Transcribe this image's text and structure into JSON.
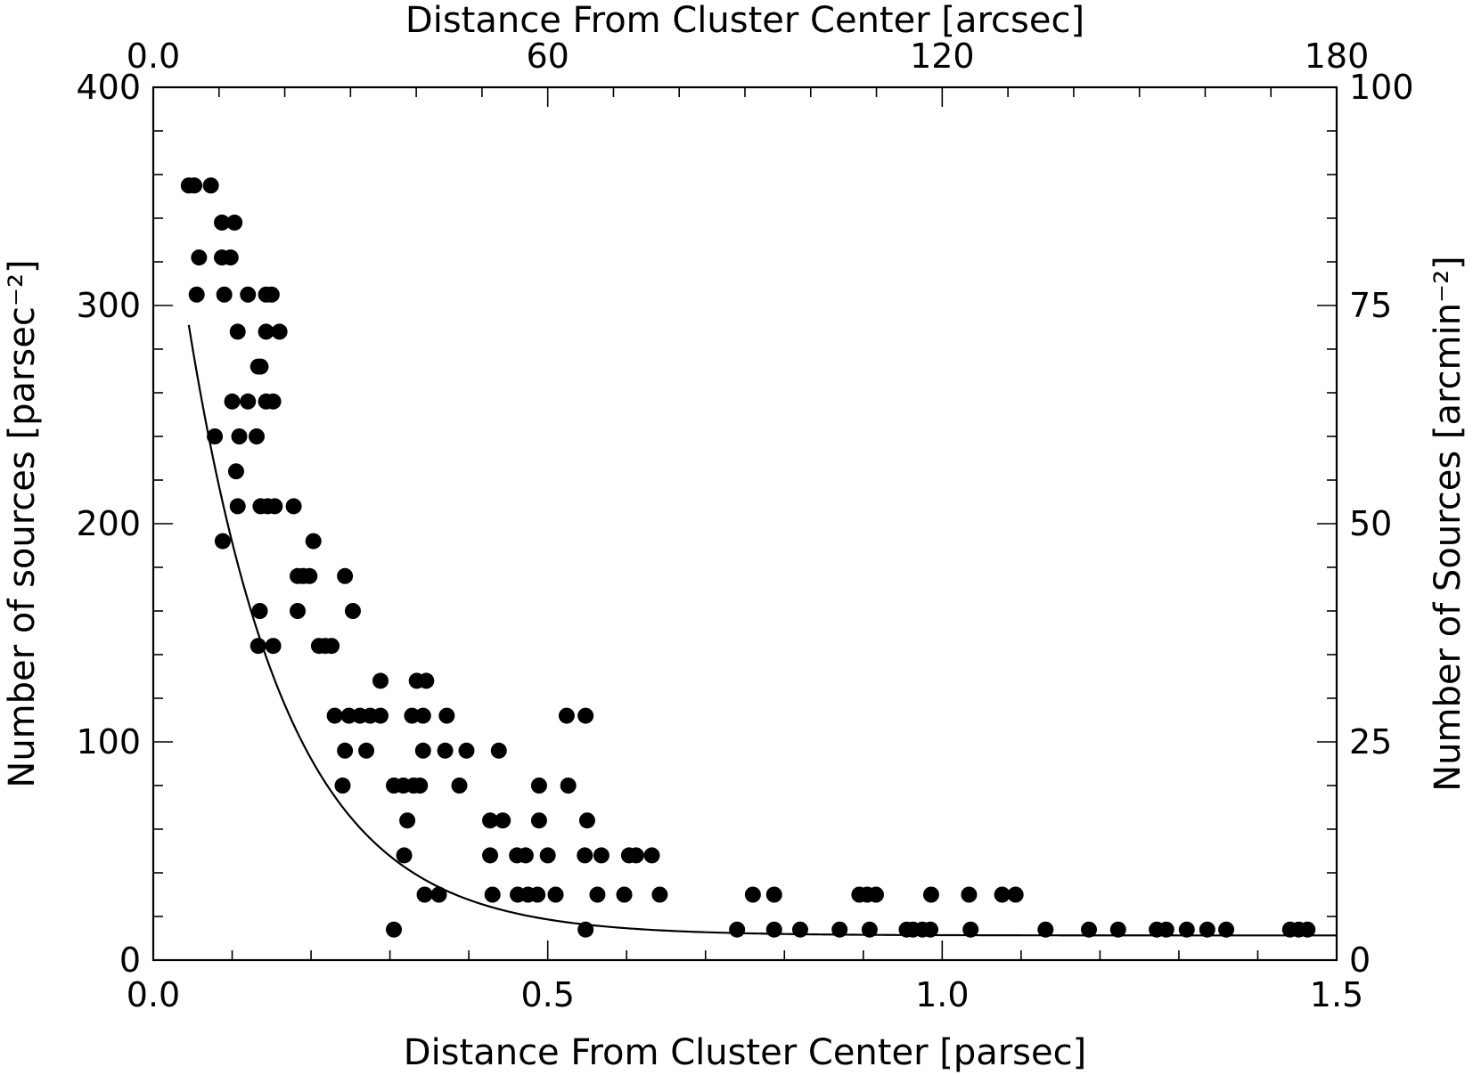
{
  "chart_data": {
    "type": "scatter",
    "xlabel": "Distance From Cluster Center [parsec]",
    "x2label": "Distance From Cluster Center [arcsec]",
    "ylabel": "Number of sources [parsec⁻²]",
    "y2label": "Number of Sources [arcmin⁻²]",
    "xlim": [
      0,
      1.5
    ],
    "ylim": [
      0,
      400
    ],
    "x2lim": [
      0,
      180
    ],
    "y2lim": [
      0,
      100
    ],
    "x_ticks": [
      "0.0",
      "0.5",
      "1.0",
      "1.5"
    ],
    "x2_ticks": [
      "0.0",
      "60",
      "120",
      "180"
    ],
    "y_ticks": [
      "0",
      "100",
      "200",
      "300",
      "400"
    ],
    "y2_ticks": [
      "0",
      "25",
      "50",
      "75",
      "100"
    ],
    "grid": false,
    "legend": "none",
    "series": [
      {
        "points": [
          [
            0.045,
            355
          ],
          [
            0.052,
            355
          ],
          [
            0.073,
            355
          ],
          [
            0.058,
            322
          ],
          [
            0.087,
            338
          ],
          [
            0.103,
            338
          ],
          [
            0.087,
            322
          ],
          [
            0.098,
            322
          ],
          [
            0.055,
            305
          ],
          [
            0.09,
            305
          ],
          [
            0.12,
            305
          ],
          [
            0.143,
            305
          ],
          [
            0.15,
            305
          ],
          [
            0.107,
            288
          ],
          [
            0.143,
            288
          ],
          [
            0.16,
            288
          ],
          [
            0.133,
            272
          ],
          [
            0.136,
            272
          ],
          [
            0.1,
            256
          ],
          [
            0.12,
            256
          ],
          [
            0.143,
            256
          ],
          [
            0.152,
            256
          ],
          [
            0.078,
            240
          ],
          [
            0.109,
            240
          ],
          [
            0.131,
            240
          ],
          [
            0.105,
            224
          ],
          [
            0.107,
            208
          ],
          [
            0.136,
            208
          ],
          [
            0.145,
            208
          ],
          [
            0.154,
            208
          ],
          [
            0.178,
            208
          ],
          [
            0.088,
            192
          ],
          [
            0.203,
            192
          ],
          [
            0.183,
            176
          ],
          [
            0.19,
            176
          ],
          [
            0.198,
            176
          ],
          [
            0.243,
            176
          ],
          [
            0.135,
            160
          ],
          [
            0.183,
            160
          ],
          [
            0.253,
            160
          ],
          [
            0.133,
            144
          ],
          [
            0.152,
            144
          ],
          [
            0.21,
            144
          ],
          [
            0.218,
            144
          ],
          [
            0.226,
            144
          ],
          [
            0.288,
            128
          ],
          [
            0.334,
            128
          ],
          [
            0.346,
            128
          ],
          [
            0.23,
            112
          ],
          [
            0.248,
            112
          ],
          [
            0.262,
            112
          ],
          [
            0.275,
            112
          ],
          [
            0.288,
            112
          ],
          [
            0.328,
            112
          ],
          [
            0.342,
            112
          ],
          [
            0.372,
            112
          ],
          [
            0.524,
            112
          ],
          [
            0.548,
            112
          ],
          [
            0.243,
            96
          ],
          [
            0.27,
            96
          ],
          [
            0.342,
            96
          ],
          [
            0.37,
            96
          ],
          [
            0.397,
            96
          ],
          [
            0.438,
            96
          ],
          [
            0.24,
            80
          ],
          [
            0.305,
            80
          ],
          [
            0.317,
            80
          ],
          [
            0.33,
            80
          ],
          [
            0.338,
            80
          ],
          [
            0.388,
            80
          ],
          [
            0.489,
            80
          ],
          [
            0.526,
            80
          ],
          [
            0.322,
            64
          ],
          [
            0.427,
            64
          ],
          [
            0.443,
            64
          ],
          [
            0.489,
            64
          ],
          [
            0.55,
            64
          ],
          [
            0.318,
            48
          ],
          [
            0.427,
            48
          ],
          [
            0.461,
            48
          ],
          [
            0.472,
            48
          ],
          [
            0.5,
            48
          ],
          [
            0.547,
            48
          ],
          [
            0.568,
            48
          ],
          [
            0.603,
            48
          ],
          [
            0.612,
            48
          ],
          [
            0.632,
            48
          ],
          [
            0.344,
            30
          ],
          [
            0.362,
            30
          ],
          [
            0.43,
            30
          ],
          [
            0.462,
            30
          ],
          [
            0.475,
            30
          ],
          [
            0.487,
            30
          ],
          [
            0.51,
            30
          ],
          [
            0.563,
            30
          ],
          [
            0.597,
            30
          ],
          [
            0.642,
            30
          ],
          [
            0.76,
            30
          ],
          [
            0.787,
            30
          ],
          [
            0.895,
            30
          ],
          [
            0.905,
            30
          ],
          [
            0.916,
            30
          ],
          [
            0.986,
            30
          ],
          [
            1.034,
            30
          ],
          [
            1.076,
            30
          ],
          [
            1.093,
            30
          ],
          [
            0.305,
            14
          ],
          [
            0.548,
            14
          ],
          [
            0.74,
            14
          ],
          [
            0.787,
            14
          ],
          [
            0.82,
            14
          ],
          [
            0.87,
            14
          ],
          [
            0.908,
            14
          ],
          [
            0.955,
            14
          ],
          [
            0.963,
            14
          ],
          [
            0.975,
            14
          ],
          [
            0.985,
            14
          ],
          [
            1.036,
            14
          ],
          [
            1.131,
            14
          ],
          [
            1.186,
            14
          ],
          [
            1.223,
            14
          ],
          [
            1.272,
            14
          ],
          [
            1.284,
            14
          ],
          [
            1.31,
            14
          ],
          [
            1.336,
            14
          ],
          [
            1.36,
            14
          ],
          [
            1.441,
            14
          ],
          [
            1.452,
            14
          ],
          [
            1.463,
            14
          ]
        ]
      }
    ],
    "fit": {
      "form": "exponential",
      "amplitude": 401,
      "scale": 0.125,
      "background": 11.3,
      "x_range": [
        0.045,
        1.5
      ]
    }
  }
}
